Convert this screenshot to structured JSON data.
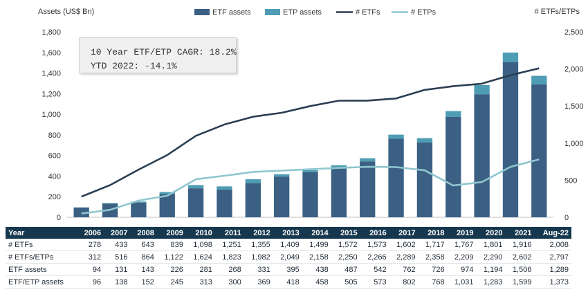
{
  "chart_data": {
    "type": "bar",
    "left_axis_title": "Assets (US$ Bn)",
    "right_axis_title": "# ETFs/ETPs",
    "left_ticks": [
      "0",
      "200",
      "400",
      "600",
      "800",
      "1,000",
      "1,200",
      "1,400",
      "1,600",
      "1,800"
    ],
    "right_ticks": [
      "0",
      "500",
      "1,000",
      "1,500",
      "2,000",
      "2,500"
    ],
    "ylim_left": [
      0,
      1800
    ],
    "ylim_right": [
      0,
      2500
    ],
    "categories": [
      "2006",
      "2007",
      "2008",
      "2009",
      "2010",
      "2011",
      "2012",
      "2013",
      "2014",
      "2015",
      "2016",
      "2017",
      "2018",
      "2019",
      "2020",
      "2021",
      "Aug-22"
    ],
    "series": [
      {
        "name": "ETF assets",
        "kind": "bar",
        "axis": "left",
        "color": "#3b6083",
        "values": [
          94,
          131,
          143,
          226,
          281,
          268,
          331,
          395,
          438,
          487,
          542,
          762,
          726,
          974,
          1194,
          1506,
          1289
        ]
      },
      {
        "name": "ETP assets",
        "kind": "bar-stack-total",
        "axis": "left",
        "color": "#4e9db4",
        "values": [
          96,
          138,
          152,
          245,
          313,
          300,
          369,
          418,
          458,
          505,
          573,
          802,
          768,
          1031,
          1283,
          1599,
          1373
        ]
      },
      {
        "name": "# ETFs",
        "kind": "line",
        "axis": "right",
        "color": "#2b3e52",
        "values": [
          278,
          433,
          643,
          839,
          1098,
          1251,
          1355,
          1409,
          1499,
          1572,
          1573,
          1602,
          1717,
          1767,
          1801,
          1916,
          2008
        ]
      },
      {
        "name": "# ETPs",
        "kind": "line",
        "axis": "right",
        "color": "#8fc6cf",
        "values": [
          50,
          100,
          225,
          290,
          512,
          560,
          612,
          628,
          648,
          665,
          680,
          676,
          632,
          428,
          475,
          680,
          780
        ]
      }
    ],
    "legend": [
      "ETF assets",
      "ETP assets",
      "# ETFs",
      "# ETPs"
    ],
    "legend_position": "top"
  },
  "note": {
    "line1": "10 Year ETF/ETP CAGR: 18.2%",
    "line2": "YTD 2022: -14.1%"
  },
  "table": {
    "header": "Year",
    "columns": [
      "2006",
      "2007",
      "2008",
      "2009",
      "2010",
      "2011",
      "2012",
      "2013",
      "2014",
      "2015",
      "2016",
      "2017",
      "2018",
      "2019",
      "2020",
      "2021",
      "Aug-22"
    ],
    "rows": [
      {
        "label": "# ETFs",
        "values": [
          "278",
          "433",
          "643",
          "839",
          "1,098",
          "1,251",
          "1,355",
          "1,409",
          "1,499",
          "1,572",
          "1,573",
          "1,602",
          "1,717",
          "1,767",
          "1,801",
          "1,916",
          "2,008"
        ]
      },
      {
        "label": "# ETFs/ETPs",
        "values": [
          "312",
          "516",
          "864",
          "1,122",
          "1,624",
          "1,823",
          "1,982",
          "2,049",
          "2,158",
          "2,250",
          "2,266",
          "2,289",
          "2,358",
          "2,209",
          "2,290",
          "2,602",
          "2,797"
        ]
      },
      {
        "label": "ETF assets",
        "values": [
          "94",
          "131",
          "143",
          "226",
          "281",
          "268",
          "331",
          "395",
          "438",
          "487",
          "542",
          "762",
          "726",
          "974",
          "1,194",
          "1,506",
          "1,289"
        ]
      },
      {
        "label": "ETF/ETP assets",
        "values": [
          "96",
          "138",
          "152",
          "245",
          "313",
          "300",
          "369",
          "418",
          "458",
          "505",
          "573",
          "802",
          "768",
          "1,031",
          "1,283",
          "1,599",
          "1,373"
        ]
      }
    ]
  }
}
